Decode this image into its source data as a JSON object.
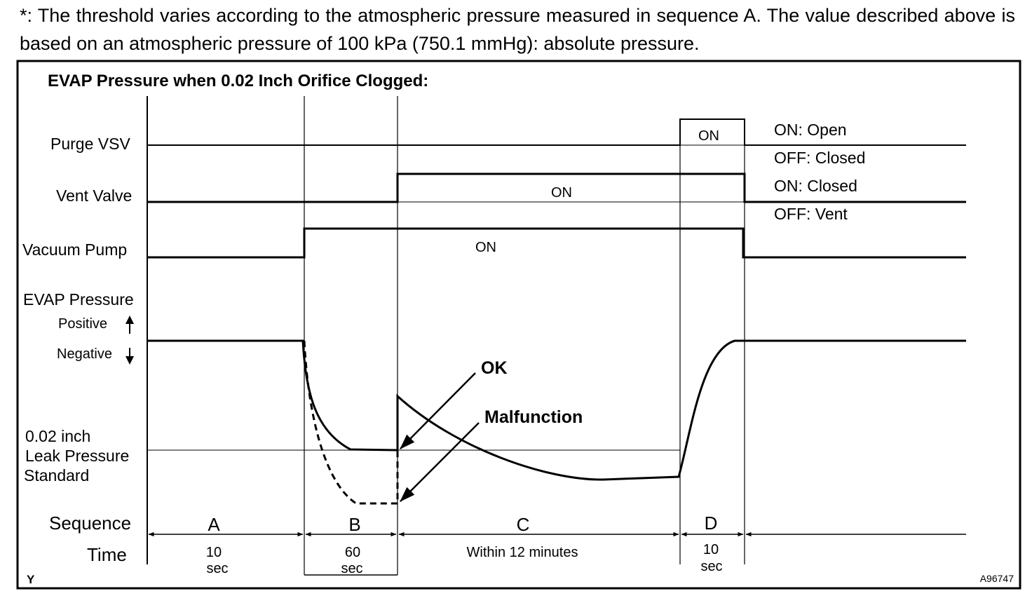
{
  "note": "*: The threshold varies according to the atmospheric pressure measured in sequence A. The value described above is based on an atmospheric pressure of 100 kPa (750.1 mmHg): absolute pressure.",
  "diagram": {
    "title": "EVAP Pressure when 0.02 Inch Orifice Clogged:",
    "row_labels": {
      "purge_vsv": "Purge VSV",
      "vent_valve": "Vent Valve",
      "vacuum_pump": "Vacuum Pump",
      "evap_pressure": "EVAP Pressure",
      "positive": "Positive",
      "negative": "Negative",
      "leak_standard_1": "0.02 inch",
      "leak_standard_2": "Leak Pressure",
      "leak_standard_3": "Standard",
      "sequence": "Sequence",
      "time": "Time"
    },
    "state_labels": {
      "purge_on": "ON",
      "vent_on": "ON",
      "pump_on": "ON"
    },
    "legend": {
      "purge_on": "ON: Open",
      "purge_off": "OFF: Closed",
      "vent_on": "ON: Closed",
      "vent_off": "OFF: Vent"
    },
    "callouts": {
      "ok": "OK",
      "malfunction": "Malfunction"
    },
    "sequences": [
      {
        "name": "A",
        "time_1": "10",
        "time_2": "sec"
      },
      {
        "name": "B",
        "time_1": "60",
        "time_2": "sec"
      },
      {
        "name": "C",
        "time_1": "Within 12 minutes",
        "time_2": ""
      },
      {
        "name": "D",
        "time_1": "10",
        "time_2": "sec"
      }
    ],
    "corner_left": "Y",
    "corner_right": "A96747"
  }
}
